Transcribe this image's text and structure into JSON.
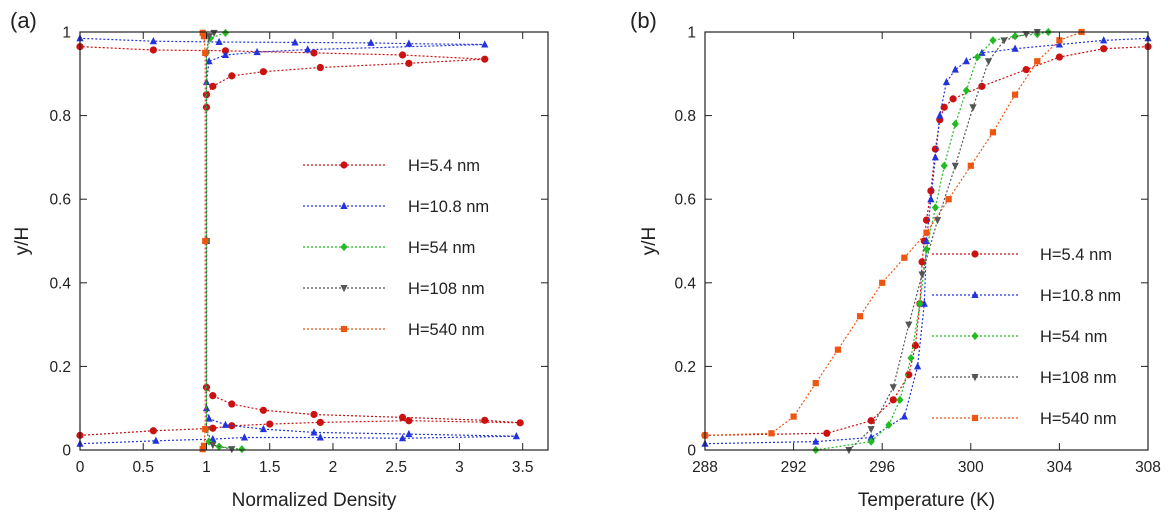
{
  "chart_data": [
    {
      "type": "line",
      "panel_label": "(a)",
      "xlabel": "Normalized Density",
      "ylabel": "y/H",
      "xlim": [
        0,
        3.7
      ],
      "ylim": [
        0,
        1
      ],
      "xticks": [
        0,
        0.5,
        1,
        1.5,
        2,
        2.5,
        3,
        3.5
      ],
      "xtick_labels": [
        "0",
        "0.5",
        "1",
        "1.5",
        "2",
        "2.5",
        "3",
        "3.5"
      ],
      "yticks": [
        0,
        0.2,
        0.4,
        0.6,
        0.8,
        1
      ],
      "ytick_labels": [
        "0",
        "0.2",
        "0.4",
        "0.6",
        "0.8",
        "1"
      ],
      "grid": false,
      "legend_position": "center-right",
      "series": [
        {
          "name": "H=5.4 nm",
          "color": "#cc1111",
          "marker": "circle",
          "x": [
            0.0,
            0.58,
            1.05,
            1.2,
            1.5,
            1.9,
            2.6,
            3.48,
            3.2,
            2.55,
            1.85,
            1.45,
            1.2,
            1.05,
            1.0,
            1.0,
            1.0,
            1.0,
            1.05,
            1.2,
            1.45,
            1.9,
            2.6,
            3.2,
            2.55,
            1.85,
            1.15,
            0.58,
            0.0
          ],
          "y": [
            0.035,
            0.046,
            0.052,
            0.058,
            0.062,
            0.066,
            0.07,
            0.065,
            0.071,
            0.078,
            0.085,
            0.095,
            0.11,
            0.13,
            0.15,
            0.5,
            0.82,
            0.85,
            0.87,
            0.895,
            0.905,
            0.915,
            0.925,
            0.935,
            0.945,
            0.95,
            0.955,
            0.957,
            0.965
          ]
        },
        {
          "name": "H=10.8 nm",
          "color": "#2233dd",
          "marker": "triangle-up",
          "x": [
            0.0,
            0.6,
            1.05,
            1.3,
            1.9,
            2.55,
            3.45,
            2.6,
            1.85,
            1.45,
            1.15,
            1.02,
            1.0,
            1.0,
            1.0,
            1.02,
            1.15,
            1.4,
            1.8,
            3.2,
            2.6,
            2.3,
            1.7,
            1.1,
            0.58,
            0.0
          ],
          "y": [
            0.015,
            0.022,
            0.026,
            0.03,
            0.03,
            0.028,
            0.033,
            0.038,
            0.042,
            0.05,
            0.06,
            0.075,
            0.1,
            0.5,
            0.88,
            0.93,
            0.945,
            0.952,
            0.958,
            0.97,
            0.972,
            0.974,
            0.975,
            0.976,
            0.978,
            0.985
          ]
        },
        {
          "name": "H=54 nm",
          "color": "#22bb22",
          "marker": "diamond",
          "x": [
            1.28,
            1.1,
            1.02,
            1.0,
            1.0,
            1.0,
            1.03,
            1.15
          ],
          "y": [
            0.002,
            0.008,
            0.02,
            0.05,
            0.5,
            0.95,
            0.985,
            0.998
          ]
        },
        {
          "name": "H=108 nm",
          "color": "#555555",
          "marker": "triangle-down",
          "x": [
            1.2,
            1.05,
            1.0,
            1.0,
            1.0,
            1.02,
            1.06
          ],
          "y": [
            0.002,
            0.012,
            0.05,
            0.5,
            0.95,
            0.99,
            0.998
          ]
        },
        {
          "name": "H=540 nm",
          "color": "#ee5511",
          "marker": "square",
          "x": [
            0.97,
            0.98,
            0.99,
            0.99,
            0.99,
            0.98,
            0.97
          ],
          "y": [
            0.002,
            0.01,
            0.05,
            0.5,
            0.95,
            0.99,
            0.998
          ]
        }
      ]
    },
    {
      "type": "line",
      "panel_label": "(b)",
      "xlabel": "Temperature (K)",
      "ylabel": "y/H",
      "xlim": [
        288,
        308
      ],
      "ylim": [
        0,
        1
      ],
      "xticks": [
        288,
        292,
        296,
        300,
        304,
        308
      ],
      "xtick_labels": [
        "288",
        "292",
        "296",
        "300",
        "304",
        "308"
      ],
      "yticks": [
        0,
        0.2,
        0.4,
        0.6,
        0.8,
        1
      ],
      "ytick_labels": [
        "0",
        "0.2",
        "0.4",
        "0.6",
        "0.8",
        "1"
      ],
      "grid": false,
      "legend_position": "bottom-right",
      "series": [
        {
          "name": "H=5.4 nm",
          "color": "#cc1111",
          "marker": "circle",
          "x": [
            288.0,
            293.5,
            295.5,
            296.5,
            297.2,
            297.5,
            297.7,
            297.8,
            297.9,
            298.0,
            298.2,
            298.4,
            298.6,
            298.8,
            299.2,
            300.5,
            302.5,
            304.0,
            306.0,
            308.0
          ],
          "y": [
            0.035,
            0.04,
            0.07,
            0.12,
            0.18,
            0.25,
            0.35,
            0.45,
            0.5,
            0.55,
            0.62,
            0.72,
            0.79,
            0.82,
            0.84,
            0.87,
            0.91,
            0.94,
            0.96,
            0.965
          ]
        },
        {
          "name": "H=10.8 nm",
          "color": "#2233dd",
          "marker": "triangle-up",
          "x": [
            288.0,
            293.0,
            295.5,
            297.0,
            297.6,
            297.9,
            298.0,
            298.2,
            298.4,
            298.6,
            298.9,
            299.3,
            299.8,
            300.5,
            302.0,
            304.0,
            306.0,
            308.0
          ],
          "y": [
            0.015,
            0.02,
            0.03,
            0.08,
            0.2,
            0.35,
            0.5,
            0.6,
            0.7,
            0.8,
            0.88,
            0.91,
            0.93,
            0.95,
            0.96,
            0.97,
            0.98,
            0.985
          ]
        },
        {
          "name": "H=54 nm",
          "color": "#22bb22",
          "marker": "diamond",
          "x": [
            293.0,
            295.5,
            296.3,
            296.8,
            297.3,
            297.7,
            298.0,
            298.4,
            298.8,
            299.3,
            299.8,
            300.3,
            301.0,
            302.0,
            303.0,
            303.5
          ],
          "y": [
            0.0,
            0.02,
            0.06,
            0.12,
            0.22,
            0.35,
            0.48,
            0.58,
            0.68,
            0.78,
            0.86,
            0.94,
            0.98,
            0.99,
            0.995,
            1.0
          ]
        },
        {
          "name": "H=108 nm",
          "color": "#555555",
          "marker": "triangle-down",
          "x": [
            294.5,
            295.5,
            296.5,
            297.2,
            297.8,
            298.5,
            299.3,
            300.1,
            300.8,
            301.5,
            302.5,
            303.0
          ],
          "y": [
            0.0,
            0.05,
            0.15,
            0.3,
            0.42,
            0.55,
            0.68,
            0.82,
            0.93,
            0.98,
            0.995,
            1.0
          ]
        },
        {
          "name": "H=540 nm",
          "color": "#ee5511",
          "marker": "square",
          "x": [
            288.0,
            291.0,
            292.0,
            293.0,
            294.0,
            295.0,
            296.0,
            297.0,
            298.0,
            299.0,
            300.0,
            301.0,
            302.0,
            303.0,
            304.0,
            305.0
          ],
          "y": [
            0.035,
            0.04,
            0.08,
            0.16,
            0.24,
            0.32,
            0.4,
            0.46,
            0.52,
            0.6,
            0.68,
            0.76,
            0.85,
            0.93,
            0.98,
            1.0
          ]
        }
      ]
    }
  ]
}
